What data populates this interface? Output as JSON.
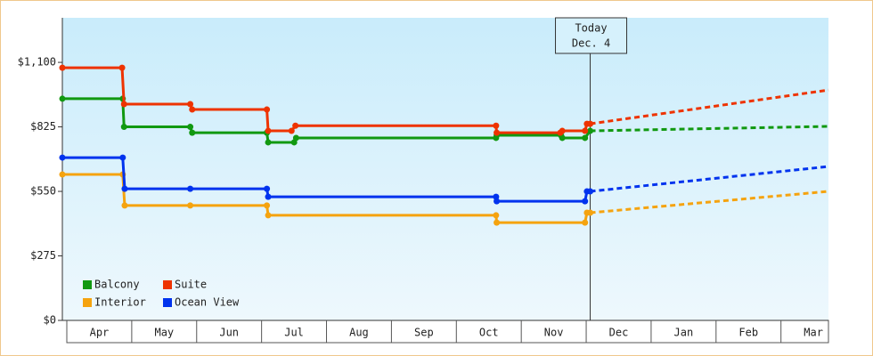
{
  "chart_data": {
    "type": "step-line",
    "xlim": [
      0,
      11.8
    ],
    "xticks": [
      {
        "value": 0.5,
        "label": "Apr"
      },
      {
        "value": 1.5,
        "label": "May"
      },
      {
        "value": 2.5,
        "label": "Jun"
      },
      {
        "value": 3.5,
        "label": "Jul"
      },
      {
        "value": 4.5,
        "label": "Aug"
      },
      {
        "value": 5.5,
        "label": "Sep"
      },
      {
        "value": 6.5,
        "label": "Oct"
      },
      {
        "value": 7.5,
        "label": "Nov"
      },
      {
        "value": 8.5,
        "label": "Dec"
      },
      {
        "value": 9.5,
        "label": "Jan"
      },
      {
        "value": 10.5,
        "label": "Feb"
      },
      {
        "value": 11.5,
        "label": "Mar"
      }
    ],
    "ylim": [
      0,
      1290
    ],
    "yticks": [
      {
        "value": 0,
        "label": "$0"
      },
      {
        "value": 275,
        "label": "$275"
      },
      {
        "value": 550,
        "label": "$550"
      },
      {
        "value": 825,
        "label": "$825"
      },
      {
        "value": 1100,
        "label": "$1,100"
      }
    ],
    "annotation": {
      "x": 8.13,
      "lines": [
        "Today",
        "Dec. 4"
      ]
    },
    "series": [
      {
        "name": "Balcony",
        "color": "#119911",
        "x": [
          0,
          0.93,
          0.95,
          1.97,
          2.0,
          3.15,
          3.17,
          3.57,
          3.6,
          6.68,
          6.69,
          7.68,
          7.7,
          8.05,
          8.13
        ],
        "values": [
          945,
          945,
          825,
          825,
          800,
          800,
          759,
          759,
          778,
          778,
          789,
          789,
          778,
          778,
          808
        ],
        "forecast": {
          "x": [
            8.13,
            11.8
          ],
          "values": [
            808,
            827
          ]
        }
      },
      {
        "name": "Suite",
        "color": "#ee3300",
        "x": [
          0,
          0.92,
          0.95,
          1.97,
          2.0,
          3.15,
          3.17,
          3.53,
          3.59,
          6.68,
          6.69,
          7.67,
          7.7,
          8.05,
          8.08,
          8.13
        ],
        "values": [
          1077,
          1077,
          922,
          922,
          899,
          899,
          808,
          808,
          830,
          830,
          800,
          800,
          808,
          808,
          838,
          838
        ],
        "forecast": {
          "x": [
            8.13,
            11.8
          ],
          "values": [
            838,
            982
          ]
        }
      },
      {
        "name": "Interior",
        "color": "#f5a30f",
        "x": [
          0,
          0.93,
          0.96,
          1.97,
          3.15,
          3.17,
          6.68,
          6.69,
          8.05,
          8.08,
          8.13
        ],
        "values": [
          622,
          622,
          490,
          490,
          490,
          448,
          448,
          417,
          417,
          459,
          459
        ],
        "forecast": {
          "x": [
            8.13,
            11.8
          ],
          "values": [
            459,
            550
          ]
        }
      },
      {
        "name": "Ocean View",
        "color": "#0033ee",
        "x": [
          0,
          0.93,
          0.96,
          1.97,
          3.15,
          3.17,
          6.68,
          6.69,
          8.05,
          8.08,
          8.13
        ],
        "values": [
          694,
          694,
          561,
          561,
          561,
          527,
          527,
          508,
          508,
          550,
          550
        ],
        "forecast": {
          "x": [
            8.13,
            11.8
          ],
          "values": [
            550,
            656
          ]
        }
      }
    ]
  }
}
